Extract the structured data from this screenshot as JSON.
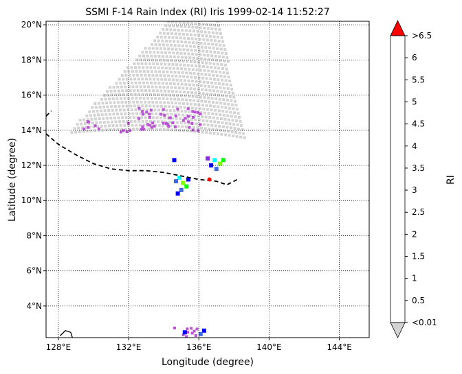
{
  "chart_data": {
    "type": "heatmap",
    "title": "SSMI F-14 Rain Index (RI) Iris 1999-02-14 11:52:27",
    "xlabel": "Longitude (degree)",
    "ylabel": "Latitude (degree)",
    "xlim": [
      127.3,
      145.7
    ],
    "ylim": [
      2.2,
      20.2
    ],
    "x_ticks": [
      128,
      132,
      136,
      140,
      144
    ],
    "x_tick_labels": [
      "128°E",
      "132°E",
      "136°E",
      "140°E",
      "144°E"
    ],
    "y_ticks": [
      4,
      6,
      8,
      10,
      12,
      14,
      16,
      18,
      20
    ],
    "y_tick_labels": [
      "4°N",
      "6°N",
      "8°N",
      "10°N",
      "12°N",
      "14°N",
      "16°N",
      "18°N",
      "20°N"
    ],
    "grid": "dotted",
    "colorbar": {
      "label": "RI",
      "tick_labels": [
        "<0.01",
        "0.5",
        "1",
        "1.5",
        "2",
        "2.5",
        "3",
        "3.5",
        "4",
        "4.5",
        "5",
        "5.5",
        "6",
        ">6.5"
      ],
      "colors": [
        "#ba55d3",
        "#8a2be2",
        "#0000ff",
        "#4169e1",
        "#00ffff",
        "#00ff00",
        "#7fff00",
        "#ffff00",
        "#ffd700",
        "#ffa500",
        "#800000",
        "#000000",
        "#000000"
      ],
      "under_color": "#d3d3d3",
      "over_color": "#ff0000"
    },
    "swath_color": "#d3d3d3",
    "storm_track": [
      {
        "lon": 127.3,
        "lat": 13.8
      },
      {
        "lon": 128.0,
        "lat": 13.2
      },
      {
        "lon": 129.0,
        "lat": 12.6
      },
      {
        "lon": 130.0,
        "lat": 12.1
      },
      {
        "lon": 131.0,
        "lat": 11.8
      },
      {
        "lon": 132.0,
        "lat": 11.7
      },
      {
        "lon": 133.0,
        "lat": 11.7
      },
      {
        "lon": 134.0,
        "lat": 11.6
      },
      {
        "lon": 135.0,
        "lat": 11.4
      },
      {
        "lon": 136.0,
        "lat": 11.2
      },
      {
        "lon": 137.0,
        "lat": 11.1
      },
      {
        "lon": 137.6,
        "lat": 10.9
      },
      {
        "lon": 138.2,
        "lat": 11.2
      }
    ],
    "storm_track_fragment": [
      {
        "lon": 127.3,
        "lat": 14.8
      },
      {
        "lon": 127.6,
        "lat": 15.1
      }
    ],
    "storm_position": {
      "lon": 136.6,
      "lat": 11.2
    },
    "rain_cells": [
      {
        "lon": 134.6,
        "lat": 12.3,
        "ri": 1.2
      },
      {
        "lon": 134.9,
        "lat": 11.3,
        "ri": 2.2
      },
      {
        "lon": 135.1,
        "lat": 11.0,
        "ri": 3.2
      },
      {
        "lon": 135.3,
        "lat": 10.8,
        "ri": 2.8
      },
      {
        "lon": 135.0,
        "lat": 10.6,
        "ri": 1.6
      },
      {
        "lon": 134.7,
        "lat": 11.1,
        "ri": 1.8
      },
      {
        "lon": 135.4,
        "lat": 11.2,
        "ri": 1.4
      },
      {
        "lon": 134.8,
        "lat": 10.4,
        "ri": 1.1
      },
      {
        "lon": 136.9,
        "lat": 12.3,
        "ri": 2.2
      },
      {
        "lon": 137.2,
        "lat": 12.1,
        "ri": 3.1
      },
      {
        "lon": 137.4,
        "lat": 12.3,
        "ri": 2.6
      },
      {
        "lon": 136.7,
        "lat": 12.0,
        "ri": 1.3
      },
      {
        "lon": 137.0,
        "lat": 11.8,
        "ri": 1.7
      },
      {
        "lon": 136.5,
        "lat": 12.4,
        "ri": 0.8
      },
      {
        "lon": 136.3,
        "lat": 2.6,
        "ri": 1.2
      },
      {
        "lon": 136.1,
        "lat": 2.4,
        "ri": 1.6
      },
      {
        "lon": 135.2,
        "lat": 2.5,
        "ri": 1.1
      }
    ],
    "coastline": [
      {
        "lon": 128.1,
        "lat": 2.3
      },
      {
        "lon": 128.4,
        "lat": 2.6
      },
      {
        "lon": 128.7,
        "lat": 2.5
      },
      {
        "lon": 128.8,
        "lat": 2.2
      }
    ]
  }
}
